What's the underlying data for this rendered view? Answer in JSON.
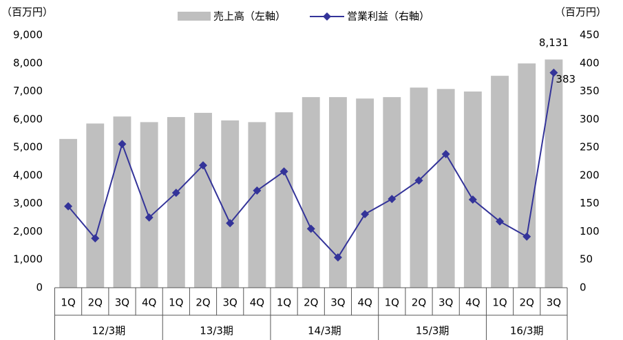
{
  "chart_data": {
    "type": "bar_line",
    "y_label": "（百万円）",
    "y2_label": "（百万円）",
    "categories": [
      "1Q",
      "2Q",
      "3Q",
      "4Q",
      "1Q",
      "2Q",
      "3Q",
      "4Q",
      "1Q",
      "2Q",
      "3Q",
      "4Q",
      "1Q",
      "2Q",
      "3Q",
      "4Q",
      "1Q",
      "2Q",
      "3Q"
    ],
    "periods": [
      "12/3期",
      null,
      null,
      null,
      "13/3期",
      null,
      null,
      null,
      "14/3期",
      null,
      null,
      null,
      "15/3期",
      null,
      null,
      null,
      "16/3期",
      null,
      null
    ],
    "series": [
      {
        "name": "売上高（左軸）",
        "type": "bar",
        "color": "#bfbfbf",
        "values": [
          5300,
          5850,
          6100,
          5900,
          6080,
          6230,
          5960,
          5900,
          6250,
          6790,
          6790,
          6740,
          6790,
          7130,
          7080,
          6990,
          7550,
          7990,
          8131
        ],
        "value_labels": [
          null,
          null,
          null,
          null,
          null,
          null,
          null,
          null,
          null,
          null,
          null,
          null,
          null,
          null,
          null,
          null,
          null,
          null,
          "8,131"
        ]
      },
      {
        "name": "営業利益（右軸）",
        "type": "line",
        "axis": "y2",
        "color": "#333399",
        "values": [
          145,
          88,
          256,
          125,
          169,
          218,
          115,
          173,
          207,
          105,
          54,
          131,
          158,
          191,
          238,
          157,
          118,
          91,
          383
        ],
        "value_labels": [
          null,
          null,
          null,
          null,
          null,
          null,
          null,
          null,
          null,
          null,
          null,
          null,
          null,
          null,
          null,
          null,
          null,
          null,
          "383"
        ]
      }
    ],
    "ylim": [
      0,
      9000
    ],
    "yticks": [
      0,
      {
        "value": 1000,
        "label": "1,000"
      },
      {
        "value": 2000,
        "label": "2,000"
      },
      {
        "value": 3000,
        "label": "3,000"
      },
      {
        "value": 4000,
        "label": "4,000"
      },
      {
        "value": 5000,
        "label": "5,000"
      },
      {
        "value": 6000,
        "label": "6,000"
      },
      {
        "value": 7000,
        "label": "7,000"
      },
      {
        "value": 8000,
        "label": "8,000"
      },
      {
        "value": 9000,
        "label": "9,000"
      }
    ],
    "y2lim": [
      0,
      450
    ],
    "y2ticks": [
      0,
      50,
      100,
      150,
      200,
      250,
      300,
      350,
      400,
      450
    ],
    "grid": false,
    "legend": "top"
  }
}
